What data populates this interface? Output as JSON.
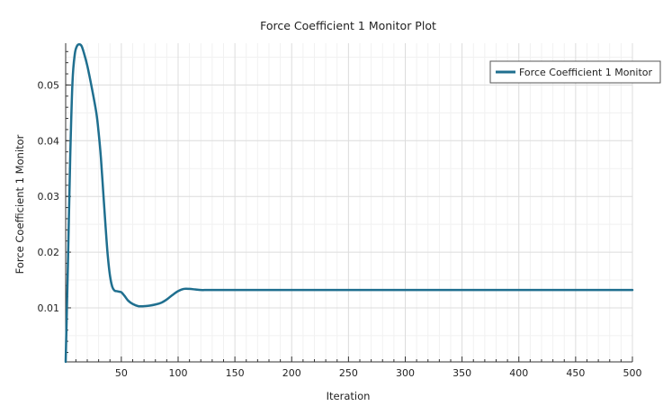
{
  "chart_data": {
    "type": "line",
    "title": "Force Coefficient 1 Monitor Plot",
    "xlabel": "Iteration",
    "ylabel": "Force Coefficient 1 Monitor",
    "xlim": [
      1,
      500
    ],
    "ylim": [
      0.0003,
      0.0575
    ],
    "x_ticks": [
      50,
      100,
      150,
      200,
      250,
      300,
      350,
      400,
      450,
      500
    ],
    "y_ticks": [
      0.01,
      0.02,
      0.03,
      0.04,
      0.05
    ],
    "grid": true,
    "legend_position": "top-right",
    "series": [
      {
        "name": "Force Coefficient 1 Monitor",
        "color": "#1f6f8f",
        "x": [
          1,
          3,
          5,
          7,
          9,
          11,
          13,
          15,
          17,
          20,
          24,
          28,
          30,
          32,
          34,
          36,
          38,
          40,
          42,
          44,
          46,
          48,
          50,
          53,
          56,
          60,
          65,
          70,
          75,
          80,
          85,
          90,
          95,
          100,
          105,
          110,
          115,
          120,
          125,
          130,
          140,
          150,
          175,
          200,
          250,
          300,
          350,
          400,
          450,
          500
        ],
        "values": [
          0.0003,
          0.018,
          0.037,
          0.0505,
          0.0555,
          0.057,
          0.0573,
          0.057,
          0.0558,
          0.0535,
          0.0495,
          0.045,
          0.0415,
          0.037,
          0.031,
          0.025,
          0.0195,
          0.0158,
          0.0138,
          0.0131,
          0.013,
          0.0129,
          0.0128,
          0.0121,
          0.0113,
          0.0107,
          0.0103,
          0.0103,
          0.0104,
          0.0106,
          0.0109,
          0.0115,
          0.0123,
          0.013,
          0.0134,
          0.0134,
          0.0133,
          0.0132,
          0.0132,
          0.0132,
          0.0132,
          0.0132,
          0.0132,
          0.0132,
          0.0132,
          0.0132,
          0.0132,
          0.0132,
          0.0132,
          0.0132
        ]
      }
    ]
  }
}
